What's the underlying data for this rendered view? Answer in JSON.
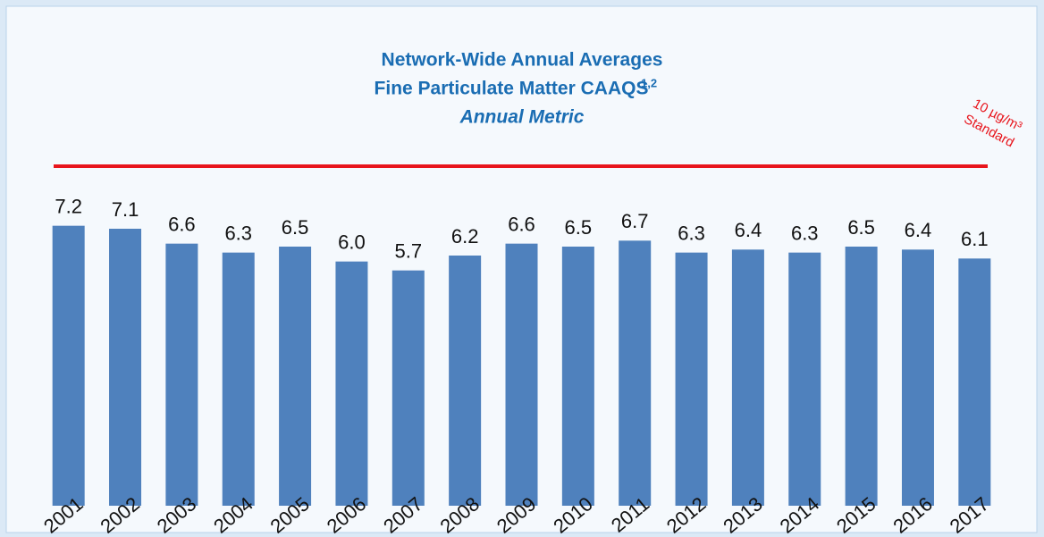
{
  "chart_data": {
    "type": "bar",
    "title": "Network-Wide Annual Averages",
    "subtitle": "Fine Particulate Matter CAAQS",
    "subtitle_superscript": "1,2",
    "subtitle2": "Annual Metric",
    "annotation": "10 µg/m³",
    "annotation2": "Standard",
    "categories": [
      "2001",
      "2002",
      "2003",
      "2004",
      "2005",
      "2006",
      "2007",
      "2008",
      "2009",
      "2010",
      "2011",
      "2012",
      "2013",
      "2014",
      "2015",
      "2016",
      "2017"
    ],
    "values": [
      7.2,
      7.1,
      6.6,
      6.3,
      6.5,
      6.0,
      5.7,
      6.2,
      6.6,
      6.5,
      6.7,
      6.3,
      6.4,
      6.3,
      6.5,
      6.4,
      6.1
    ],
    "value_labels": [
      "7.2",
      "7.1",
      "6.6",
      "6.3",
      "6.5",
      "6.0",
      "5.7",
      "6.2",
      "6.6",
      "6.5",
      "6.7",
      "6.3",
      "6.4",
      "6.3",
      "6.5",
      "6.4",
      "6.1"
    ],
    "color": "#4f81bd",
    "ylim": [
      -2.2,
      9.2
    ]
  }
}
